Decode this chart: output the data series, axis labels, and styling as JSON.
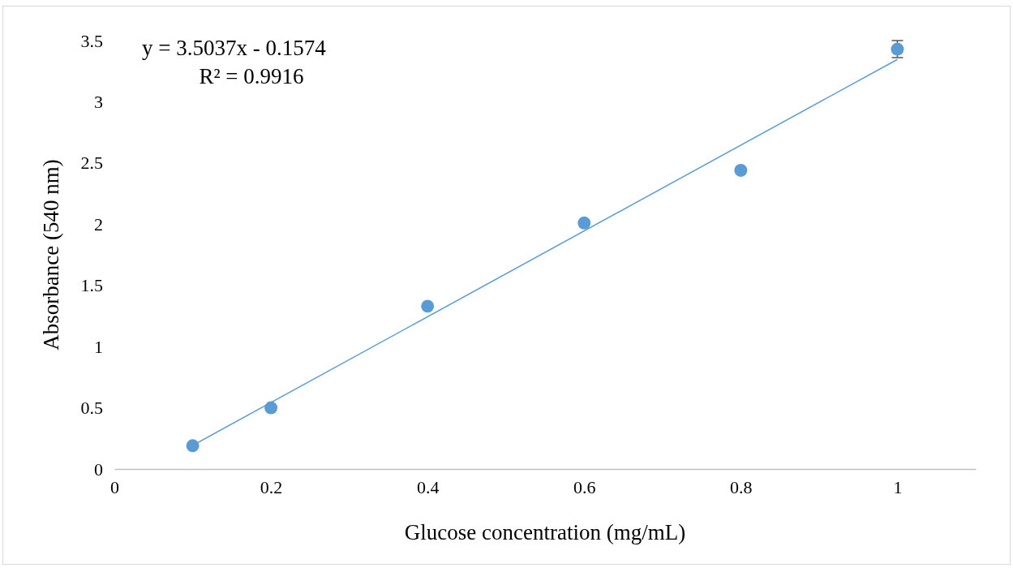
{
  "chart_data": {
    "type": "scatter",
    "xlabel": "Glucose concentration (mg/mL)",
    "ylabel": "Absorbance (540 nm)",
    "xlim": [
      0,
      1.1
    ],
    "xticks": [
      0,
      0.2,
      0.4,
      0.6,
      0.8,
      1
    ],
    "ylim": [
      0,
      3.5
    ],
    "yticks": [
      0,
      0.5,
      1,
      1.5,
      2,
      2.5,
      3,
      3.5
    ],
    "grid": false,
    "annotations": [
      "y = 3.5037x - 0.1574",
      "R² = 0.9916"
    ],
    "series": [
      {
        "color": "#5b9bd5",
        "marker": "circle",
        "x": [
          0.1,
          0.2,
          0.4,
          0.6,
          0.8,
          1
        ],
        "values": [
          0.19,
          0.5,
          1.33,
          2.01,
          2.44,
          3.43
        ],
        "errors": [
          null,
          null,
          null,
          null,
          null,
          0.07
        ]
      },
      {
        "type": "line",
        "color": "#5b9bd5",
        "x": [
          0.1,
          1
        ],
        "values": [
          0.193,
          3.346
        ],
        "line_style": "solid"
      }
    ]
  }
}
